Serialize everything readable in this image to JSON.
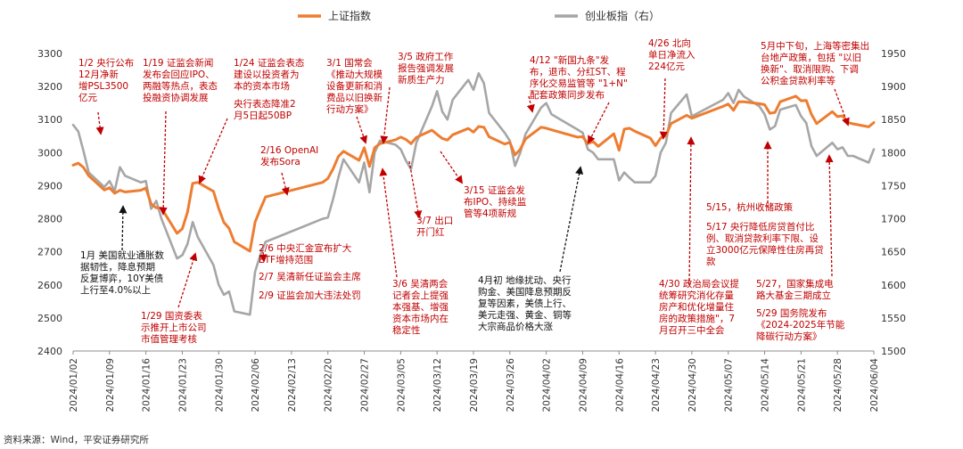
{
  "chart_data": {
    "type": "line",
    "source": "资料来源：Wind，平安证券研究所",
    "left_axis": {
      "min": 2400,
      "max": 3300,
      "ticks": [
        3300,
        3200,
        3100,
        3000,
        2900,
        2800,
        2700,
        2600,
        2500,
        2400
      ]
    },
    "right_axis": {
      "min": 1500,
      "max": 1950,
      "ticks": [
        1950,
        1900,
        1850,
        1800,
        1750,
        1700,
        1650,
        1600,
        1550,
        1500
      ]
    },
    "x_ticks": [
      "2024/01/02",
      "2024/01/09",
      "2024/01/16",
      "2024/01/23",
      "2024/01/30",
      "2024/02/06",
      "2024/02/13",
      "2024/02/20",
      "2024/02/27",
      "2024/03/05",
      "2024/03/12",
      "2024/03/19",
      "2024/03/26",
      "2024/04/02",
      "2024/04/09",
      "2024/04/16",
      "2024/04/23",
      "2024/04/30",
      "2024/05/07",
      "2024/05/14",
      "2024/05/21",
      "2024/05/28",
      "2024/06/04"
    ],
    "x_range": [
      "2024/01/02",
      "2024/06/04"
    ],
    "series": [
      {
        "name": "上证指数",
        "axis": "left",
        "color": "#ed7d31",
        "points": [
          [
            "2024/01/02",
            2962
          ],
          [
            "2024/01/03",
            2968
          ],
          [
            "2024/01/04",
            2955
          ],
          [
            "2024/01/05",
            2930
          ],
          [
            "2024/01/08",
            2887
          ],
          [
            "2024/01/09",
            2894
          ],
          [
            "2024/01/10",
            2877
          ],
          [
            "2024/01/11",
            2886
          ],
          [
            "2024/01/12",
            2881
          ],
          [
            "2024/01/15",
            2886
          ],
          [
            "2024/01/16",
            2893
          ],
          [
            "2024/01/17",
            2845
          ],
          [
            "2024/01/18",
            2833
          ],
          [
            "2024/01/19",
            2832
          ],
          [
            "2024/01/22",
            2756
          ],
          [
            "2024/01/23",
            2770
          ],
          [
            "2024/01/24",
            2820
          ],
          [
            "2024/01/25",
            2907
          ],
          [
            "2024/01/26",
            2910
          ],
          [
            "2024/01/29",
            2883
          ],
          [
            "2024/01/30",
            2831
          ],
          [
            "2024/01/31",
            2789
          ],
          [
            "2024/02/01",
            2771
          ],
          [
            "2024/02/02",
            2730
          ],
          [
            "2024/02/05",
            2702
          ],
          [
            "2024/02/06",
            2790
          ],
          [
            "2024/02/07",
            2829
          ],
          [
            "2024/02/08",
            2866
          ],
          [
            "2024/02/19",
            2910
          ],
          [
            "2024/02/20",
            2922
          ],
          [
            "2024/02/21",
            2951
          ],
          [
            "2024/02/22",
            2988
          ],
          [
            "2024/02/23",
            3004
          ],
          [
            "2024/02/26",
            2977
          ],
          [
            "2024/02/27",
            3015
          ],
          [
            "2024/02/28",
            2958
          ],
          [
            "2024/02/29",
            3015
          ],
          [
            "2024/03/01",
            3027
          ],
          [
            "2024/03/04",
            3039
          ],
          [
            "2024/03/05",
            3047
          ],
          [
            "2024/03/06",
            3040
          ],
          [
            "2024/03/07",
            3027
          ],
          [
            "2024/03/08",
            3046
          ],
          [
            "2024/03/11",
            3068
          ],
          [
            "2024/03/12",
            3055
          ],
          [
            "2024/03/13",
            3043
          ],
          [
            "2024/03/14",
            3038
          ],
          [
            "2024/03/15",
            3054
          ],
          [
            "2024/03/18",
            3073
          ],
          [
            "2024/03/19",
            3062
          ],
          [
            "2024/03/20",
            3079
          ],
          [
            "2024/03/21",
            3077
          ],
          [
            "2024/03/22",
            3048
          ],
          [
            "2024/03/25",
            3026
          ],
          [
            "2024/03/26",
            3031
          ],
          [
            "2024/03/27",
            2993
          ],
          [
            "2024/03/28",
            3010
          ],
          [
            "2024/03/29",
            3041
          ],
          [
            "2024/04/01",
            3077
          ],
          [
            "2024/04/02",
            3074
          ],
          [
            "2024/04/03",
            3069
          ],
          [
            "2024/04/08",
            3047
          ],
          [
            "2024/04/09",
            3048
          ],
          [
            "2024/04/10",
            3027
          ],
          [
            "2024/04/11",
            3034
          ],
          [
            "2024/04/12",
            3019
          ],
          [
            "2024/04/15",
            3057
          ],
          [
            "2024/04/16",
            3007
          ],
          [
            "2024/04/17",
            3071
          ],
          [
            "2024/04/18",
            3074
          ],
          [
            "2024/04/19",
            3065
          ],
          [
            "2024/04/22",
            3044
          ],
          [
            "2024/04/23",
            3021
          ],
          [
            "2024/04/24",
            3044
          ],
          [
            "2024/04/25",
            3052
          ],
          [
            "2024/04/26",
            3088
          ],
          [
            "2024/04/29",
            3113
          ],
          [
            "2024/04/30",
            3104
          ],
          [
            "2024/05/06",
            3140
          ],
          [
            "2024/05/07",
            3147
          ],
          [
            "2024/05/08",
            3128
          ],
          [
            "2024/05/09",
            3154
          ],
          [
            "2024/05/10",
            3154
          ],
          [
            "2024/05/13",
            3148
          ],
          [
            "2024/05/14",
            3145
          ],
          [
            "2024/05/15",
            3119
          ],
          [
            "2024/05/16",
            3122
          ],
          [
            "2024/05/17",
            3154
          ],
          [
            "2024/05/20",
            3171
          ],
          [
            "2024/05/21",
            3157
          ],
          [
            "2024/05/22",
            3158
          ],
          [
            "2024/05/23",
            3116
          ],
          [
            "2024/05/24",
            3088
          ],
          [
            "2024/05/27",
            3124
          ],
          [
            "2024/05/28",
            3109
          ],
          [
            "2024/05/29",
            3111
          ],
          [
            "2024/05/30",
            3091
          ],
          [
            "2024/05/31",
            3087
          ],
          [
            "2024/06/03",
            3078
          ],
          [
            "2024/06/04",
            3091
          ]
        ]
      },
      {
        "name": "创业板指（右）",
        "axis": "right",
        "color": "#a6a6a6",
        "points": [
          [
            "2024/01/02",
            1842
          ],
          [
            "2024/01/03",
            1832
          ],
          [
            "2024/01/04",
            1802
          ],
          [
            "2024/01/05",
            1770
          ],
          [
            "2024/01/08",
            1748
          ],
          [
            "2024/01/09",
            1757
          ],
          [
            "2024/01/10",
            1742
          ],
          [
            "2024/01/11",
            1778
          ],
          [
            "2024/01/12",
            1765
          ],
          [
            "2024/01/15",
            1755
          ],
          [
            "2024/01/16",
            1757
          ],
          [
            "2024/01/17",
            1715
          ],
          [
            "2024/01/18",
            1727
          ],
          [
            "2024/01/19",
            1700
          ],
          [
            "2024/01/22",
            1640
          ],
          [
            "2024/01/23",
            1645
          ],
          [
            "2024/01/24",
            1662
          ],
          [
            "2024/01/25",
            1695
          ],
          [
            "2024/01/26",
            1672
          ],
          [
            "2024/01/29",
            1630
          ],
          [
            "2024/01/30",
            1600
          ],
          [
            "2024/01/31",
            1585
          ],
          [
            "2024/02/01",
            1590
          ],
          [
            "2024/02/02",
            1560
          ],
          [
            "2024/02/05",
            1555
          ],
          [
            "2024/02/06",
            1620
          ],
          [
            "2024/02/07",
            1645
          ],
          [
            "2024/02/08",
            1665
          ],
          [
            "2024/02/19",
            1700
          ],
          [
            "2024/02/20",
            1702
          ],
          [
            "2024/02/21",
            1730
          ],
          [
            "2024/02/22",
            1762
          ],
          [
            "2024/02/23",
            1790
          ],
          [
            "2024/02/26",
            1755
          ],
          [
            "2024/02/27",
            1785
          ],
          [
            "2024/02/28",
            1740
          ],
          [
            "2024/02/29",
            1800
          ],
          [
            "2024/03/01",
            1818
          ],
          [
            "2024/03/04",
            1812
          ],
          [
            "2024/03/05",
            1805
          ],
          [
            "2024/03/06",
            1788
          ],
          [
            "2024/03/07",
            1775
          ],
          [
            "2024/03/08",
            1815
          ],
          [
            "2024/03/11",
            1870
          ],
          [
            "2024/03/12",
            1893
          ],
          [
            "2024/03/13",
            1862
          ],
          [
            "2024/03/14",
            1850
          ],
          [
            "2024/03/15",
            1880
          ],
          [
            "2024/03/18",
            1910
          ],
          [
            "2024/03/19",
            1895
          ],
          [
            "2024/03/20",
            1920
          ],
          [
            "2024/03/21",
            1905
          ],
          [
            "2024/03/22",
            1860
          ],
          [
            "2024/03/25",
            1830
          ],
          [
            "2024/03/26",
            1818
          ],
          [
            "2024/03/27",
            1780
          ],
          [
            "2024/03/28",
            1800
          ],
          [
            "2024/03/29",
            1828
          ],
          [
            "2024/04/01",
            1868
          ],
          [
            "2024/04/02",
            1875
          ],
          [
            "2024/04/03",
            1858
          ],
          [
            "2024/04/08",
            1835
          ],
          [
            "2024/04/09",
            1830
          ],
          [
            "2024/04/10",
            1805
          ],
          [
            "2024/04/11",
            1800
          ],
          [
            "2024/04/12",
            1790
          ],
          [
            "2024/04/15",
            1790
          ],
          [
            "2024/04/16",
            1758
          ],
          [
            "2024/04/17",
            1770
          ],
          [
            "2024/04/18",
            1762
          ],
          [
            "2024/04/19",
            1755
          ],
          [
            "2024/04/22",
            1755
          ],
          [
            "2024/04/23",
            1765
          ],
          [
            "2024/04/24",
            1800
          ],
          [
            "2024/04/25",
            1815
          ],
          [
            "2024/04/26",
            1860
          ],
          [
            "2024/04/29",
            1888
          ],
          [
            "2024/04/30",
            1855
          ],
          [
            "2024/05/06",
            1880
          ],
          [
            "2024/05/07",
            1890
          ],
          [
            "2024/05/08",
            1875
          ],
          [
            "2024/05/09",
            1895
          ],
          [
            "2024/05/10",
            1885
          ],
          [
            "2024/05/13",
            1870
          ],
          [
            "2024/05/14",
            1858
          ],
          [
            "2024/05/15",
            1835
          ],
          [
            "2024/05/16",
            1840
          ],
          [
            "2024/05/17",
            1865
          ],
          [
            "2024/05/20",
            1872
          ],
          [
            "2024/05/21",
            1855
          ],
          [
            "2024/05/22",
            1845
          ],
          [
            "2024/05/23",
            1810
          ],
          [
            "2024/05/24",
            1795
          ],
          [
            "2024/05/27",
            1815
          ],
          [
            "2024/05/28",
            1805
          ],
          [
            "2024/05/29",
            1808
          ],
          [
            "2024/05/30",
            1795
          ],
          [
            "2024/05/31",
            1795
          ],
          [
            "2024/06/03",
            1785
          ],
          [
            "2024/06/04",
            1805
          ]
        ]
      }
    ],
    "annotations": [
      {
        "lines": [
          "1/2 央行公布",
          "12月净新",
          "增PSL3500",
          "亿元"
        ],
        "color": "red"
      },
      {
        "lines": [
          "1/19 证监会新闻",
          "发布会回应IPO、",
          "两融等热点，表态",
          "投融资协调发展"
        ],
        "color": "red"
      },
      {
        "lines": [
          "1/24 证监会表态",
          "建设以投资者为",
          "本的资本市场"
        ],
        "color": "red"
      },
      {
        "lines": [
          "央行表态降准2",
          "月5日起50BP"
        ],
        "color": "red"
      },
      {
        "lines": [
          "2/16 OpenAI",
          "发布Sora"
        ],
        "color": "red"
      },
      {
        "lines": [
          "3/1 国常会",
          "《推动大规模",
          "设备更新和消",
          "费品以旧换新",
          "行动方案》"
        ],
        "color": "red"
      },
      {
        "lines": [
          "3/5 政府工作",
          "报告强调发展",
          "新质生产力"
        ],
        "color": "red"
      },
      {
        "lines": [
          "4/12  \"新国九条\"发",
          "布，退市、分红ST、程",
          "序化交易监管等 \"1+N\"",
          "配套政策同步发布"
        ],
        "color": "red"
      },
      {
        "lines": [
          "4/26 北向",
          "单日净流入",
          "224亿元"
        ],
        "color": "red"
      },
      {
        "lines": [
          "5月中下旬，上海等密集出",
          "台地产政策，包括 \"以旧",
          "换新\"、取消限购、下调",
          "公积金贷款利率等"
        ],
        "color": "red"
      },
      {
        "lines": [
          "1月 美国就业通胀数",
          "据韧性，降息预期",
          "反复博弈，10Y美债",
          "上行至4.0%以上"
        ],
        "color": "black"
      },
      {
        "lines": [
          "1/29 国资委表",
          "示推开上市公司",
          "市值管理考核"
        ],
        "color": "red"
      },
      {
        "lines": [
          "2/6 中央汇金宣布扩大",
          "ETF增持范围"
        ],
        "color": "red"
      },
      {
        "lines": [
          "2/7 吴清新任证监会主席"
        ],
        "color": "red"
      },
      {
        "lines": [
          "2/9 证监会加大违法处罚"
        ],
        "color": "red"
      },
      {
        "lines": [
          "3/15 证监会发",
          "布IPO、持续监",
          "管等4项新规"
        ],
        "color": "red"
      },
      {
        "lines": [
          "3/7 出口",
          "开门红"
        ],
        "color": "red"
      },
      {
        "lines": [
          "3/6 吴清两会",
          "记者会上提强",
          "本强基、增强",
          "资本市场内在",
          "稳定性"
        ],
        "color": "red"
      },
      {
        "lines": [
          "4月初 地缘扰动、央行",
          "购金、美国降息预期反",
          "复等因素，美债上行、",
          "美元走强、黄金、铜等",
          "大宗商品价格大涨"
        ],
        "color": "black"
      },
      {
        "lines": [
          "4/30 政治局会议提",
          "统筹研究消化存量",
          "房产和优化增量住",
          "房的政策措施\"，7",
          "月召开三中全会"
        ],
        "color": "red"
      },
      {
        "lines": [
          "5/15，杭州收储政策"
        ],
        "color": "red"
      },
      {
        "lines": [
          "5/17 央行降低房贷首付比",
          "例、取消贷款利率下限、设",
          "立3000亿元保障性住房再贷",
          "款"
        ],
        "color": "red"
      },
      {
        "lines": [
          "5/27，国家集成电",
          "路大基金三期成立"
        ],
        "color": "red"
      },
      {
        "lines": [
          "5/29 国务院发布",
          "《2024-2025年节能",
          "降碳行动方案》"
        ],
        "color": "red"
      }
    ]
  }
}
